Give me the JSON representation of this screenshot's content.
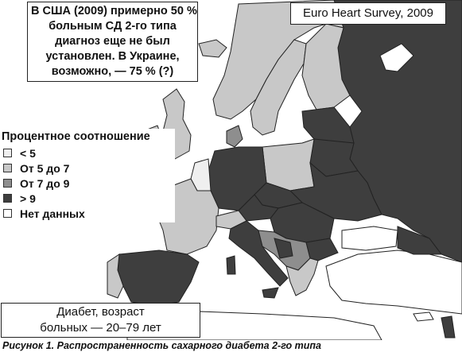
{
  "note_usa": {
    "lines": [
      "В США (2009) примерно 50 %",
      "больным СД 2-го типа",
      "диагноз еще не был",
      "установлен. В Украине,",
      "возможно, — 75 % (?)"
    ]
  },
  "survey_label": "Euro Heart Survey, 2009",
  "legend": {
    "title": "Процентное соотношение",
    "items": [
      {
        "label": "< 5",
        "color": "#efefef"
      },
      {
        "label": "От 5 до 7",
        "color": "#c8c8c8"
      },
      {
        "label": "От 7 до 9",
        "color": "#8e8e8e"
      },
      {
        "label": "> 9",
        "color": "#3e3e3e"
      },
      {
        "label": "Нет данных",
        "color": "#ffffff"
      }
    ]
  },
  "age_note": {
    "lines": [
      "Диабет, возраст",
      "больных — 20–79 лет"
    ]
  },
  "caption": "Рисунок 1. Распространенность сахарного диабета 2-го типа",
  "colors": {
    "sea": "#ffffff",
    "border": "#222222",
    "lt5": "#efefef",
    "c5to7": "#c8c8c8",
    "c7to9": "#8e8e8e",
    "gt9": "#3e3e3e",
    "nodata": "#ffffff"
  }
}
